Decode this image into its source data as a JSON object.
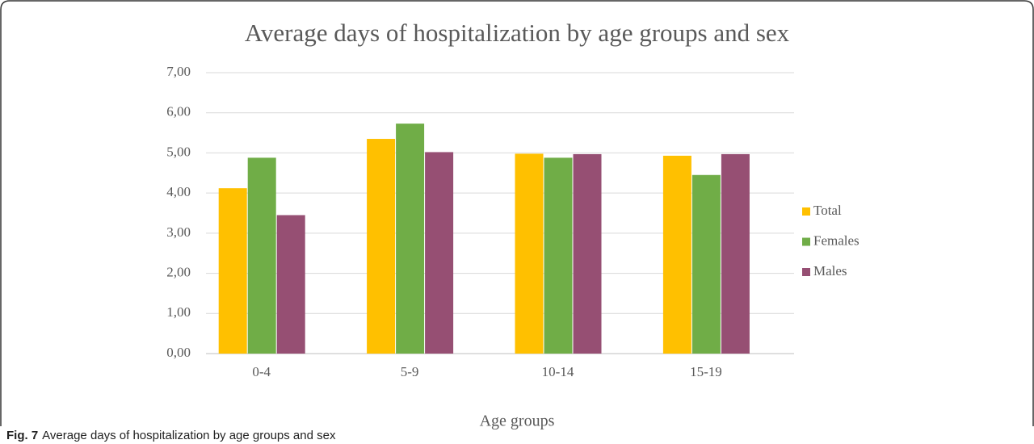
{
  "chart_data": {
    "type": "bar",
    "title": "Average days of hospitalization by age groups and sex",
    "x_label": "Age groups",
    "categories": [
      "0-4",
      "5-9",
      "10-14",
      "15-19"
    ],
    "series": [
      {
        "name": "Total",
        "color": "#ffc000",
        "values": [
          4.12,
          5.35,
          4.98,
          4.93
        ]
      },
      {
        "name": "Females",
        "color": "#70ad47",
        "values": [
          4.88,
          5.73,
          4.88,
          4.45
        ]
      },
      {
        "name": "Males",
        "color": "#964f73",
        "values": [
          3.45,
          5.02,
          4.97,
          4.97
        ]
      }
    ],
    "ylim": [
      0,
      7
    ],
    "yticks": [
      {
        "value": 0,
        "label": "0,00"
      },
      {
        "value": 1,
        "label": "1,00"
      },
      {
        "value": 2,
        "label": "2,00"
      },
      {
        "value": 3,
        "label": "3,00"
      },
      {
        "value": 4,
        "label": "4,00"
      },
      {
        "value": 5,
        "label": "5,00"
      },
      {
        "value": 6,
        "label": "6,00"
      },
      {
        "value": 7,
        "label": "7,00"
      }
    ],
    "grid": true,
    "legend": "right"
  },
  "caption": {
    "label": "Fig. 7",
    "text": "Average days of hospitalization by age groups and sex"
  }
}
